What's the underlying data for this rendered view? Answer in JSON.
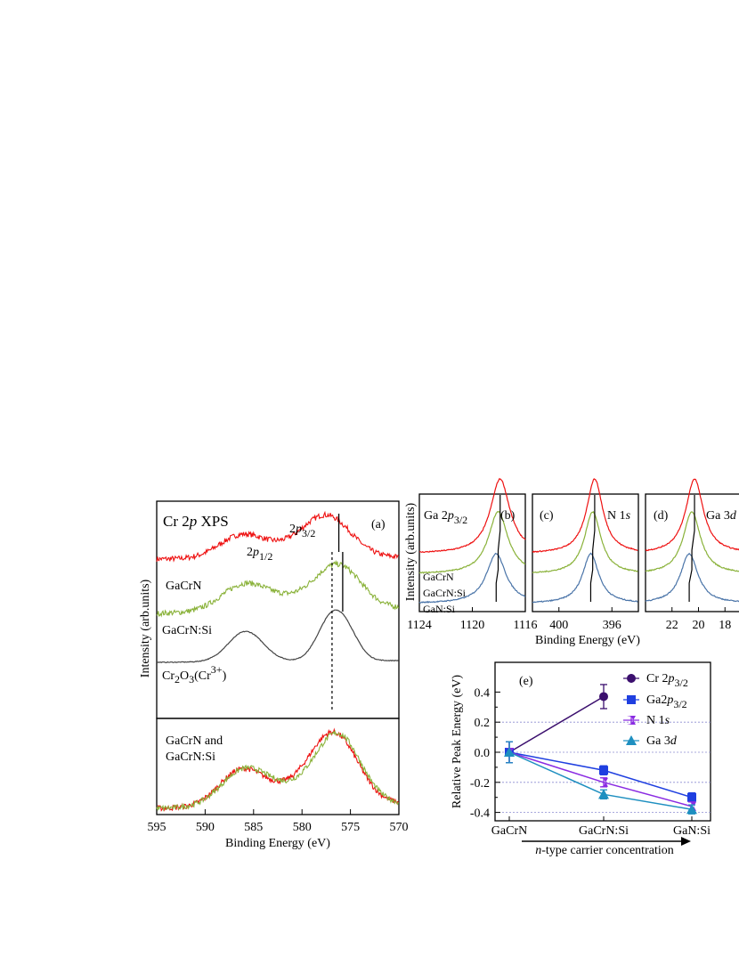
{
  "panels": {
    "a": {
      "tag": "(a)",
      "title_parts": [
        "Cr 2",
        "p",
        " XPS"
      ],
      "ylabel": "Intensity (arb.units)",
      "xlabel": "Binding Energy (eV)",
      "xticks": [
        "595",
        "590",
        "585",
        "580",
        "575",
        "570"
      ],
      "peak_p12": [
        "2",
        "p",
        "1/2"
      ],
      "peak_p32": [
        "2",
        "p",
        "3/2"
      ],
      "label_gacrn": "GaCrN",
      "label_gacrnsi": "GaCrN:Si",
      "label_cr2o3": [
        "Cr",
        "2",
        "O",
        "3",
        "(Cr",
        "3+",
        ")"
      ],
      "lower_label_1": "GaCrN and",
      "lower_label_2": "GaCrN:Si"
    },
    "b": {
      "tag": "(b)",
      "title_parts": [
        "Ga 2",
        "p",
        "3/2"
      ],
      "xticks": [
        "1124",
        "1120",
        "1116"
      ],
      "ylabel": "Intensity (arb.units)",
      "spectra_labels": [
        "GaCrN",
        "GaCrN:Si",
        "GaN:Si"
      ]
    },
    "c": {
      "tag": "(c)",
      "title_parts": [
        "N 1",
        "s"
      ],
      "xticks": [
        "400",
        "396"
      ]
    },
    "d": {
      "tag": "(d)",
      "title_parts": [
        "Ga 3",
        "d"
      ],
      "xticks": [
        "22",
        "20",
        "18"
      ]
    },
    "bcd_xlabel": "Binding Energy (eV)",
    "e": {
      "tag": "(e)",
      "ylabel": "Relative Peak Energy (eV)",
      "xlabel_parts": [
        "n",
        "-type carrier concentration"
      ],
      "yticks": [
        "0.4",
        "0.2",
        "0.0",
        "-0.2",
        "-0.4"
      ],
      "xticks": [
        "GaCrN",
        "GaCrN:Si",
        "GaN:Si"
      ],
      "legend": [
        [
          "Cr 2",
          "p",
          "3/2"
        ],
        [
          "Ga2",
          "p",
          "3/2"
        ],
        [
          "N 1",
          "s",
          ""
        ],
        [
          "Ga 3",
          "d",
          ""
        ]
      ]
    }
  },
  "colors": {
    "gacrn": "#ee1111",
    "gacrnsi": "#8ab23a",
    "cr2o3": "#444444",
    "gansi": "#4a74a8",
    "cr": "#3b0f6e",
    "ga2p": "#1f3fe0",
    "n1s": "#8a2be2",
    "ga3d": "#1e8fc0",
    "grid": "#8c8cd0"
  },
  "chart_data": [
    {
      "type": "line",
      "title": "Cr 2p XPS",
      "xlabel": "Binding Energy (eV)",
      "ylabel": "Intensity (arb.units)",
      "xlim": [
        595,
        570
      ],
      "series": [
        {
          "name": "GaCrN",
          "peaks_eV": [
            586.3,
            576.6
          ]
        },
        {
          "name": "GaCrN:Si",
          "peaks_eV": [
            586.0,
            576.2
          ]
        },
        {
          "name": "Cr2O3(Cr3+)",
          "peaks_eV": [
            585.8,
            576.8
          ]
        }
      ]
    },
    {
      "type": "line",
      "title": "Ga 2p3/2",
      "xlabel": "Binding Energy (eV)",
      "xlim": [
        1124,
        1116
      ],
      "series": [
        {
          "name": "GaCrN",
          "peak_eV": 1117.9
        },
        {
          "name": "GaCrN:Si",
          "peak_eV": 1118.05
        },
        {
          "name": "GaN:Si",
          "peak_eV": 1118.2
        }
      ]
    },
    {
      "type": "line",
      "title": "N 1s",
      "xlim": [
        402,
        394
      ],
      "series": [
        {
          "name": "GaCrN",
          "peak_eV": 397.3
        },
        {
          "name": "GaCrN:Si",
          "peak_eV": 397.45
        },
        {
          "name": "GaN:Si",
          "peak_eV": 397.6
        }
      ]
    },
    {
      "type": "line",
      "title": "Ga 3d",
      "xlim": [
        24,
        16
      ],
      "series": [
        {
          "name": "GaCrN",
          "peak_eV": 20.3
        },
        {
          "name": "GaCrN:Si",
          "peak_eV": 20.5
        },
        {
          "name": "GaN:Si",
          "peak_eV": 20.7
        }
      ]
    },
    {
      "type": "scatter",
      "ylabel": "Relative Peak Energy (eV)",
      "xlabel": "n-type carrier concentration",
      "categories": [
        "GaCrN",
        "GaCrN:Si",
        "GaN:Si"
      ],
      "ylim": [
        -0.48,
        0.48
      ],
      "series": [
        {
          "name": "Cr 2p3/2",
          "values": [
            0.0,
            0.37,
            null
          ],
          "errors": [
            0.07,
            0.08,
            null
          ]
        },
        {
          "name": "Ga2p3/2",
          "values": [
            0.0,
            -0.12,
            -0.3
          ],
          "errors": [
            0.07,
            0.03,
            0.03
          ]
        },
        {
          "name": "N 1s",
          "values": [
            0.0,
            -0.2,
            -0.36
          ],
          "errors": [
            0.07,
            0.03,
            0.03
          ]
        },
        {
          "name": "Ga 3d",
          "values": [
            0.0,
            -0.28,
            -0.38
          ],
          "errors": [
            0.07,
            0.03,
            0.03
          ]
        }
      ]
    }
  ]
}
